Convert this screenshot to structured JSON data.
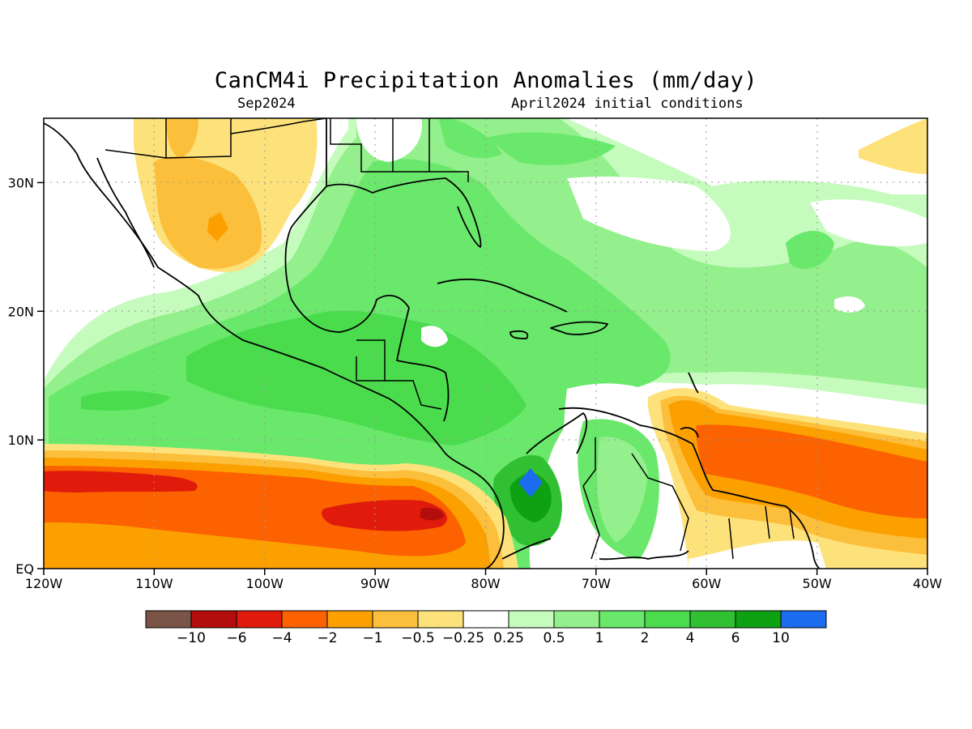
{
  "title": "CanCM4i Precipitation Anomalies (mm/day)",
  "subtitle_left": "Sep2024",
  "subtitle_right": "April2024 initial conditions",
  "lat_ticks": [
    {
      "lat": 30,
      "label": "30N"
    },
    {
      "lat": 20,
      "label": "20N"
    },
    {
      "lat": 10,
      "label": "10N"
    },
    {
      "lat": 0,
      "label": "EQ"
    }
  ],
  "lon_ticks": [
    {
      "lon": -120,
      "label": "120W"
    },
    {
      "lon": -110,
      "label": "110W"
    },
    {
      "lon": -100,
      "label": "100W"
    },
    {
      "lon": -90,
      "label": "90W"
    },
    {
      "lon": -80,
      "label": "80W"
    },
    {
      "lon": -70,
      "label": "70W"
    },
    {
      "lon": -60,
      "label": "60W"
    },
    {
      "lon": -50,
      "label": "50W"
    },
    {
      "lon": -40,
      "label": "40W"
    }
  ],
  "colorbar": {
    "colors": [
      "#7a5447",
      "#b40d0d",
      "#e01b0b",
      "#fc6200",
      "#fca000",
      "#fcbf3c",
      "#fde27b",
      "#ffffff",
      "#c6fbbe",
      "#93f08c",
      "#6ae86c",
      "#4adc4c",
      "#30c032",
      "#0ea212",
      "#1c6cf0"
    ],
    "labels": [
      "−10",
      "−6",
      "−4",
      "−2",
      "−1",
      "−0.5",
      "−0.25",
      "0.25",
      "0.5",
      "1",
      "2",
      "4",
      "6",
      "10"
    ]
  }
}
